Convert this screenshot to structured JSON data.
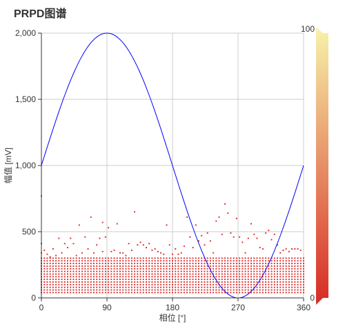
{
  "chart_data": {
    "type": "scatter",
    "title": "PRPD图谱",
    "xlabel": "相位 [°]",
    "ylabel": "幅值 [mV]",
    "xlim": [
      0,
      360
    ],
    "ylim": [
      0,
      2000
    ],
    "x_ticks": [
      "0",
      "90",
      "180",
      "270",
      "360"
    ],
    "y_ticks": [
      "0",
      "500",
      "1,000",
      "1,500",
      "2,000"
    ],
    "grid": true,
    "sine_reference": {
      "center": 1000,
      "amplitude": 1000,
      "color": "#0000ff"
    },
    "point_color": "#dd3333",
    "points_dense_band": {
      "x_step": 4,
      "y_step": 20,
      "y_min": 40,
      "y_max": 300
    },
    "points_scattered": [
      [
        0,
        770
      ],
      [
        0,
        410
      ],
      [
        0,
        340
      ],
      [
        4,
        360
      ],
      [
        8,
        330
      ],
      [
        12,
        310
      ],
      [
        16,
        370
      ],
      [
        20,
        320
      ],
      [
        24,
        450
      ],
      [
        28,
        340
      ],
      [
        32,
        410
      ],
      [
        36,
        380
      ],
      [
        40,
        450
      ],
      [
        44,
        410
      ],
      [
        48,
        320
      ],
      [
        52,
        550
      ],
      [
        56,
        340
      ],
      [
        60,
        460
      ],
      [
        64,
        370
      ],
      [
        68,
        610
      ],
      [
        72,
        340
      ],
      [
        76,
        400
      ],
      [
        80,
        450
      ],
      [
        84,
        570
      ],
      [
        84,
        350
      ],
      [
        88,
        460
      ],
      [
        92,
        530
      ],
      [
        96,
        350
      ],
      [
        100,
        360
      ],
      [
        104,
        560
      ],
      [
        108,
        340
      ],
      [
        112,
        340
      ],
      [
        116,
        320
      ],
      [
        120,
        410
      ],
      [
        124,
        360
      ],
      [
        128,
        650
      ],
      [
        132,
        400
      ],
      [
        136,
        420
      ],
      [
        140,
        400
      ],
      [
        144,
        380
      ],
      [
        148,
        410
      ],
      [
        152,
        360
      ],
      [
        156,
        370
      ],
      [
        160,
        350
      ],
      [
        164,
        340
      ],
      [
        168,
        330
      ],
      [
        172,
        550
      ],
      [
        176,
        400
      ],
      [
        180,
        330
      ],
      [
        184,
        370
      ],
      [
        188,
        330
      ],
      [
        192,
        340
      ],
      [
        196,
        390
      ],
      [
        200,
        610
      ],
      [
        204,
        460
      ],
      [
        208,
        380
      ],
      [
        212,
        550
      ],
      [
        216,
        430
      ],
      [
        220,
        470
      ],
      [
        224,
        400
      ],
      [
        228,
        490
      ],
      [
        232,
        430
      ],
      [
        236,
        340
      ],
      [
        240,
        580
      ],
      [
        244,
        610
      ],
      [
        248,
        480
      ],
      [
        252,
        710
      ],
      [
        256,
        640
      ],
      [
        260,
        490
      ],
      [
        264,
        460
      ],
      [
        268,
        600
      ],
      [
        272,
        460
      ],
      [
        276,
        420
      ],
      [
        280,
        340
      ],
      [
        284,
        450
      ],
      [
        288,
        560
      ],
      [
        292,
        480
      ],
      [
        296,
        450
      ],
      [
        300,
        380
      ],
      [
        304,
        370
      ],
      [
        308,
        490
      ],
      [
        312,
        510
      ],
      [
        316,
        440
      ],
      [
        320,
        480
      ],
      [
        324,
        400
      ],
      [
        328,
        340
      ],
      [
        332,
        360
      ],
      [
        336,
        370
      ],
      [
        340,
        350
      ],
      [
        344,
        370
      ],
      [
        348,
        370
      ],
      [
        352,
        370
      ],
      [
        356,
        360
      ]
    ],
    "color_scale": {
      "min": "0",
      "max": "100",
      "colors": [
        "#d73027",
        "#f6efa6"
      ]
    }
  }
}
